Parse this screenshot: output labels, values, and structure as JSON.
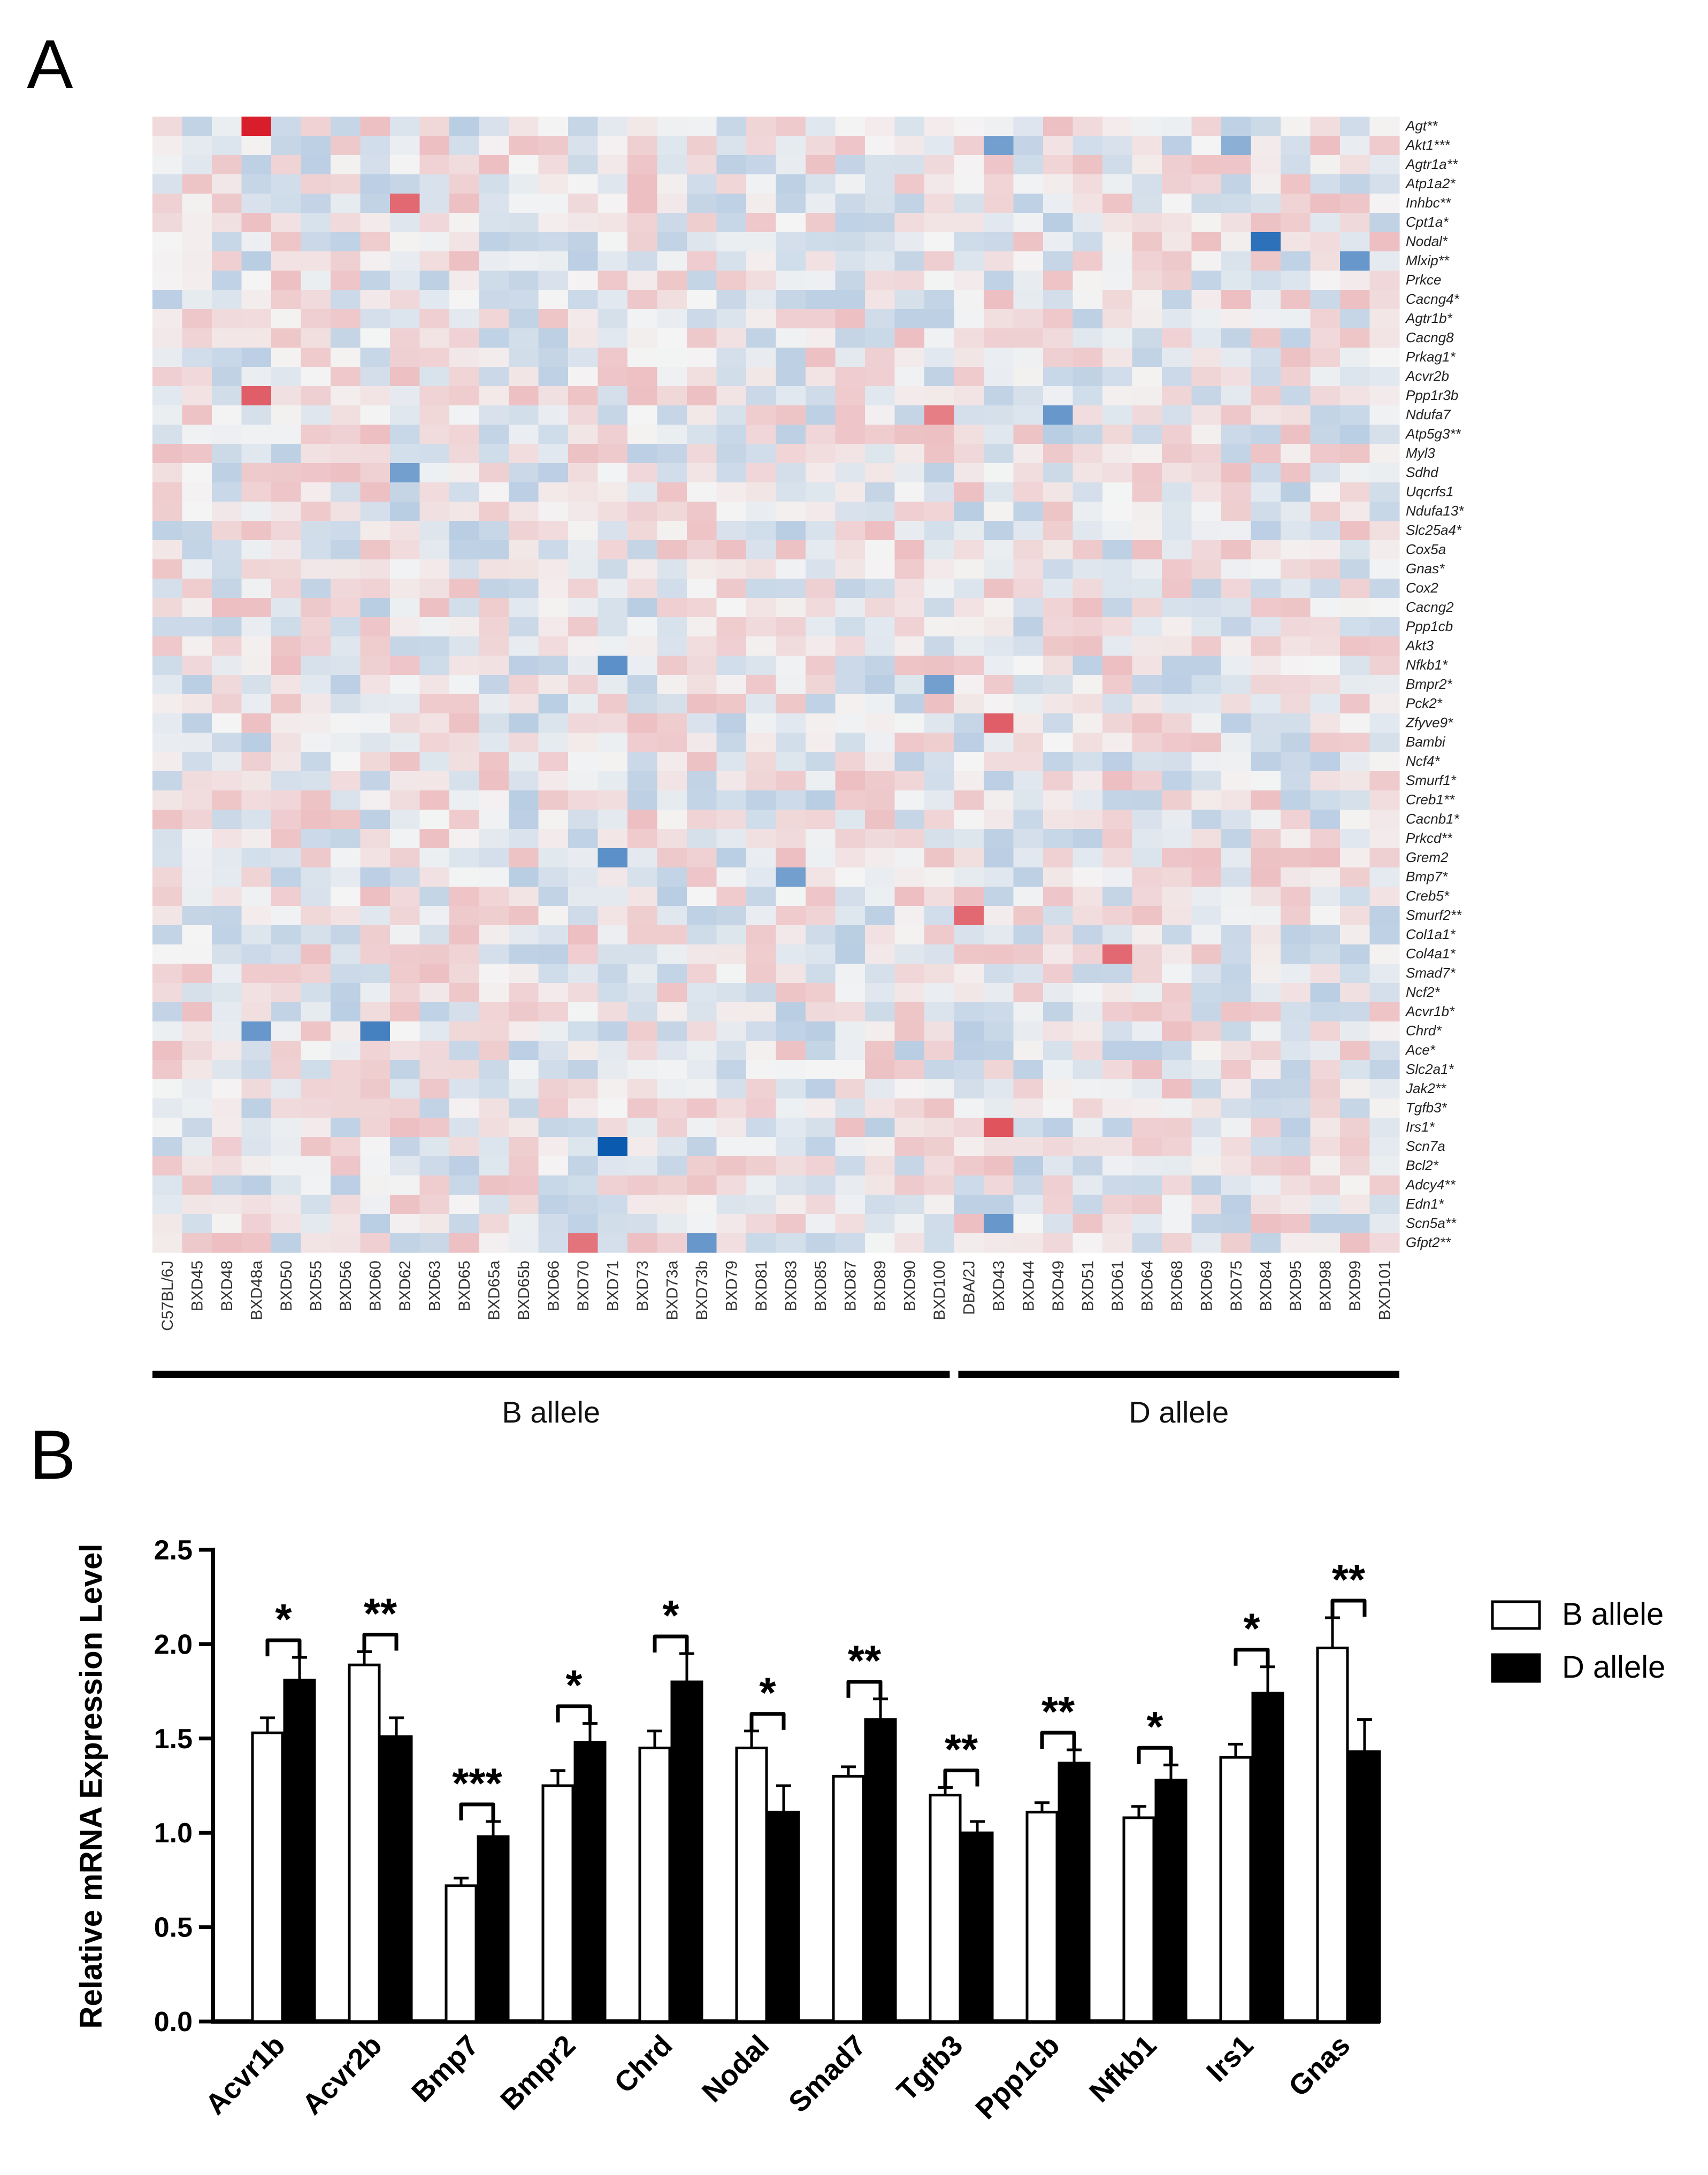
{
  "panel_labels": {
    "a": "A",
    "b": "B"
  },
  "colors": {
    "low": "#0a5ab0",
    "mid": "#f4f4f4",
    "high": "#d81e2a",
    "bar_b": "#ffffff",
    "bar_d": "#000000"
  },
  "chart_data": [
    {
      "type": "heatmap",
      "title": "",
      "rows": [
        "Agt**",
        "Akt1***",
        "Agtr1a**",
        "Atp1a2*",
        "Inhbc**",
        "Cpt1a*",
        "Nodal*",
        "Mlxip**",
        "Prkce",
        "Cacng4*",
        "Agtr1b*",
        "Cacng8",
        "Prkag1*",
        "Acvr2b",
        "Ppp1r3b",
        "Ndufa7",
        "Atp5g3**",
        "Myl3",
        "Sdhd",
        "Uqcrfs1",
        "Ndufa13*",
        "Slc25a4*",
        "Cox5a",
        "Gnas*",
        "Cox2",
        "Cacng2",
        "Ppp1cb",
        "Akt3",
        "Nfkb1*",
        "Bmpr2*",
        "Pck2*",
        "Zfyve9*",
        "Bambi",
        "Ncf4*",
        "Smurf1*",
        "Creb1**",
        "Cacnb1*",
        "Prkcd**",
        "Grem2",
        "Bmp7*",
        "Creb5*",
        "Smurf2**",
        "Col1a1*",
        "Col4a1*",
        "Smad7*",
        "Ncf2*",
        "Acvr1b*",
        "Chrd*",
        "Ace*",
        "Slc2a1*",
        "Jak2**",
        "Tgfb3*",
        "Irs1*",
        "Scn7a",
        "Bcl2*",
        "Adcy4**",
        "Edn1*",
        "Scn5a**",
        "Gfpt2**"
      ],
      "columns": [
        "C57BL/6J",
        "BXD45",
        "BXD48",
        "BXD48a",
        "BXD50",
        "BXD55",
        "BXD56",
        "BXD60",
        "BXD62",
        "BXD63",
        "BXD65",
        "BXD65a",
        "BXD65b",
        "BXD66",
        "BXD70",
        "BXD71",
        "BXD73",
        "BXD73a",
        "BXD73b",
        "BXD79",
        "BXD81",
        "BXD83",
        "BXD85",
        "BXD87",
        "BXD89",
        "BXD90",
        "BXD100",
        "DBA/2J",
        "BXD43",
        "BXD44",
        "BXD49",
        "BXD51",
        "BXD61",
        "BXD64",
        "BXD68",
        "BXD69",
        "BXD75",
        "BXD84",
        "BXD95",
        "BXD98",
        "BXD99",
        "BXD101"
      ],
      "groups": [
        {
          "label": "B allele",
          "first": 0,
          "last": 26
        },
        {
          "label": "D allele",
          "first": 27,
          "last": 41
        }
      ],
      "value_range": [
        -1,
        1
      ],
      "note": "Cell values are color-coded relative expression; only the strongest cells are estimated, remaining cells are near-neutral.",
      "highlights": [
        {
          "row": "Agt**",
          "col": "BXD48a",
          "value": 1.0
        },
        {
          "row": "Akt1***",
          "col": "BXD43",
          "value": -0.55
        },
        {
          "row": "Akt1***",
          "col": "BXD75",
          "value": -0.45
        },
        {
          "row": "Inhbc**",
          "col": "BXD62",
          "value": 0.65
        },
        {
          "row": "Nodal*",
          "col": "BXD84",
          "value": -0.85
        },
        {
          "row": "Mlxip**",
          "col": "BXD99",
          "value": -0.6
        },
        {
          "row": "Ppp1r3b",
          "col": "BXD48a",
          "value": 0.7
        },
        {
          "row": "Ndufa7",
          "col": "BXD100",
          "value": 0.55
        },
        {
          "row": "Ndufa7",
          "col": "BXD49",
          "value": -0.6
        },
        {
          "row": "Sdhd",
          "col": "BXD62",
          "value": -0.55
        },
        {
          "row": "Nfkb1*",
          "col": "BXD71",
          "value": -0.65
        },
        {
          "row": "Bmpr2*",
          "col": "BXD100",
          "value": -0.55
        },
        {
          "row": "Zfyve9*",
          "col": "BXD43",
          "value": 0.7
        },
        {
          "row": "Grem2",
          "col": "BXD71",
          "value": -0.65
        },
        {
          "row": "Bmp7*",
          "col": "BXD83",
          "value": -0.55
        },
        {
          "row": "Smurf2**",
          "col": "DBA/2J",
          "value": 0.65
        },
        {
          "row": "Col4a1*",
          "col": "BXD61",
          "value": 0.65
        },
        {
          "row": "Chrd*",
          "col": "BXD60",
          "value": -0.75
        },
        {
          "row": "Chrd*",
          "col": "BXD48a",
          "value": -0.6
        },
        {
          "row": "Irs1*",
          "col": "BXD43",
          "value": 0.75
        },
        {
          "row": "Scn7a",
          "col": "BXD71",
          "value": -1.0
        },
        {
          "row": "Scn5a**",
          "col": "BXD43",
          "value": -0.6
        },
        {
          "row": "Gfpt2**",
          "col": "BXD73b",
          "value": -0.6
        },
        {
          "row": "Gfpt2**",
          "col": "BXD70",
          "value": 0.6
        }
      ]
    },
    {
      "type": "bar",
      "title": "",
      "xlabel": "",
      "ylabel": "Relative mRNA Expression Level",
      "ylim": [
        0,
        2.5
      ],
      "yticks": [
        "0.0",
        "0.5",
        "1.0",
        "1.5",
        "2.0",
        "2.5"
      ],
      "categories": [
        "Acvr1b",
        "Acvr2b",
        "Bmp7",
        "Bmpr2",
        "Chrd",
        "Nodal",
        "Smad7",
        "Tgfb3",
        "Ppp1cb",
        "Nfkb1",
        "Irs1",
        "Gnas"
      ],
      "series": [
        {
          "name": "B allele",
          "values": [
            1.53,
            1.89,
            0.72,
            1.25,
            1.45,
            1.45,
            1.3,
            1.2,
            1.11,
            1.08,
            1.4,
            1.98
          ],
          "errors": [
            0.08,
            0.07,
            0.04,
            0.08,
            0.09,
            0.09,
            0.05,
            0.04,
            0.05,
            0.06,
            0.07,
            0.16
          ]
        },
        {
          "name": "D allele",
          "values": [
            1.81,
            1.51,
            0.98,
            1.48,
            1.8,
            1.11,
            1.6,
            1.0,
            1.37,
            1.28,
            1.74,
            1.43
          ],
          "errors": [
            0.12,
            0.1,
            0.08,
            0.1,
            0.15,
            0.14,
            0.11,
            0.06,
            0.07,
            0.08,
            0.14,
            0.17
          ]
        }
      ],
      "significance": [
        "*",
        "**",
        "***",
        "*",
        "*",
        "*",
        "**",
        "**",
        "**",
        "*",
        "*",
        "**"
      ],
      "legend": [
        "B allele",
        "D allele"
      ],
      "legend_position": "top-right"
    }
  ]
}
